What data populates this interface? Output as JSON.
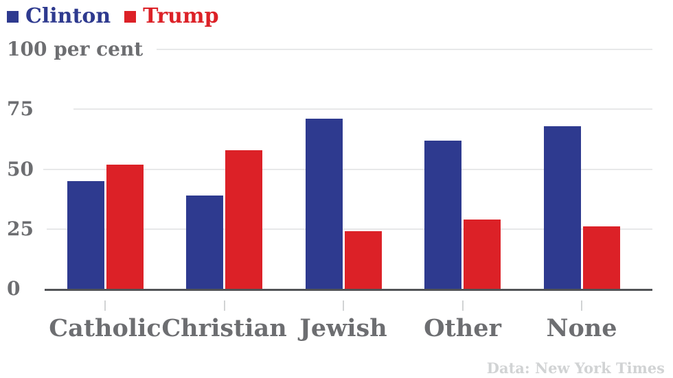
{
  "chart_data": {
    "type": "bar",
    "categories": [
      "Catholic",
      "Christian",
      "Jewish",
      "Other",
      "None"
    ],
    "series": [
      {
        "name": "Clinton",
        "color": "#2e3a8f",
        "values": [
          45,
          39,
          71,
          62,
          68
        ]
      },
      {
        "name": "Trump",
        "color": "#dc2127",
        "values": [
          52,
          58,
          24,
          29,
          26
        ]
      }
    ],
    "xlabel": "",
    "ylabel": "per cent",
    "ylim": [
      0,
      100
    ],
    "yticks": [
      0,
      25,
      50,
      75,
      100
    ],
    "ytick_labels": [
      "0",
      "25",
      "50",
      "75",
      "100 per cent"
    ],
    "grid": true,
    "legend_position": "top-left",
    "source_note": "Data: New York Times"
  },
  "colors": {
    "clinton_blue": "#2e3a8f",
    "trump_red": "#dc2127",
    "axis": "#515356",
    "gridline": "#e7e8e9",
    "x_tick": "#d1d3d4",
    "label_grey": "#6d6e71",
    "source_grey": "#d1d3d4",
    "background": "#ffffff"
  }
}
